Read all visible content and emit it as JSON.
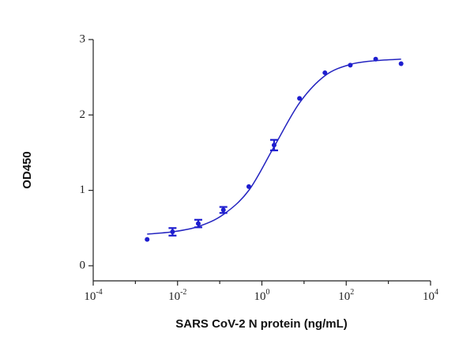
{
  "chart_data": {
    "type": "scatter",
    "x_label": "SARS CoV-2 N protein (ng/mL)",
    "y_label": "OD450",
    "x_scale": "log",
    "xlim": [
      0.0001,
      10000
    ],
    "ylim": [
      -0.2,
      3
    ],
    "xticks": [
      {
        "value": 0.0001,
        "label": "10",
        "exponent": "-4"
      },
      {
        "value": 0.01,
        "label": "10",
        "exponent": "-2"
      },
      {
        "value": 1,
        "label": "10",
        "exponent": "0"
      },
      {
        "value": 100,
        "label": "10",
        "exponent": "2"
      },
      {
        "value": 10000,
        "label": "10",
        "exponent": "4"
      }
    ],
    "xminorticks": [
      0.001,
      0.1,
      10,
      1000
    ],
    "yticks": [
      0,
      1,
      2,
      3
    ],
    "series": [
      {
        "color": "#1e1ecf",
        "x": [
          0.0019,
          0.0076,
          0.031,
          0.122,
          0.49,
          1.95,
          7.8,
          31.25,
          125,
          500,
          2000
        ],
        "values": [
          0.35,
          0.45,
          0.56,
          0.74,
          1.05,
          1.6,
          2.22,
          2.56,
          2.66,
          2.74,
          2.68
        ],
        "errors": [
          null,
          0.05,
          0.05,
          0.04,
          null,
          0.07,
          null,
          null,
          null,
          null,
          null
        ]
      }
    ],
    "fit_curve": {
      "color": "#2424c0",
      "x": [
        0.0019,
        0.0076,
        0.031,
        0.122,
        0.49,
        1.95,
        7.8,
        31.25,
        125,
        500,
        2000
      ],
      "values": [
        0.42,
        0.45,
        0.52,
        0.68,
        1.0,
        1.58,
        2.16,
        2.52,
        2.67,
        2.72,
        2.74
      ]
    }
  }
}
